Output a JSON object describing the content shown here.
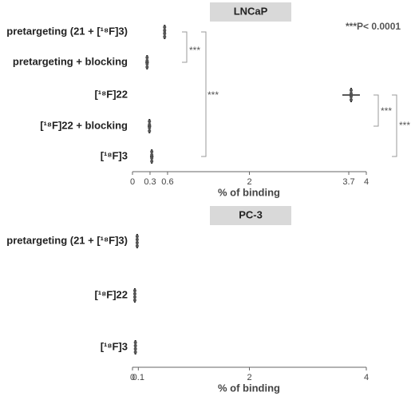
{
  "chart_data": [
    {
      "type": "dot",
      "title": "LNCaP",
      "x_label": "% of binding",
      "categories": [
        "pretargeting (21 + [¹⁸F]3)",
        "pretargeting + blocking",
        "[¹⁸F]22",
        "[¹⁸F]22 + blocking",
        "[¹⁸F]3"
      ],
      "values": [
        0.55,
        0.25,
        3.74,
        0.29,
        0.33
      ],
      "errors": [
        0.02,
        0.03,
        0.15,
        0.03,
        0.03
      ],
      "xlim": [
        0,
        4
      ],
      "xticks": [
        0,
        0.3,
        0.6,
        2,
        3.7,
        4
      ],
      "color": "#222",
      "annotations": [
        "***",
        "***",
        "***",
        "***",
        "***P< 0.0001"
      ]
    },
    {
      "type": "dot",
      "title": "PC-3",
      "x_label": "% of binding",
      "categories": [
        "pretargeting (21 + [¹⁸F]3)",
        "[¹⁸F]22",
        "[¹⁸F]3"
      ],
      "values": [
        0.08,
        0.04,
        0.05
      ],
      "errors": [
        0.01,
        0.01,
        0.01
      ],
      "xlim": [
        0,
        4
      ],
      "xticks": [
        0,
        0.1,
        2,
        4
      ],
      "color": "#222"
    }
  ]
}
